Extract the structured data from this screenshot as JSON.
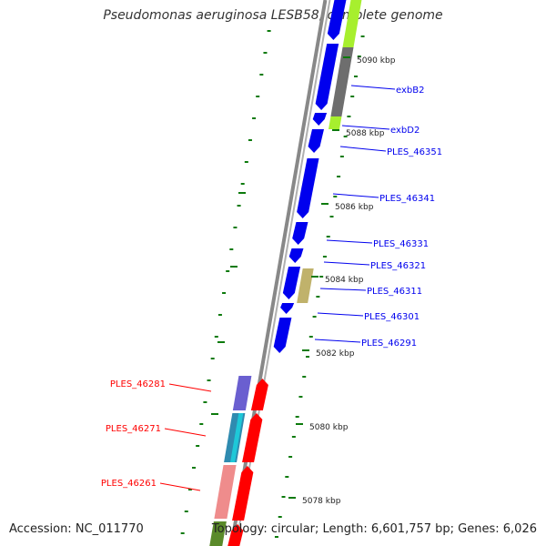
{
  "title": "Pseudomonas aeruginosa LESB58, complete genome",
  "footer": {
    "accession": "Accession: NC_011770",
    "summary": "Topology: circular; Length: 6,601,757 bp; Genes: 6,026"
  },
  "colors": {
    "plus_strand": "#0000ee",
    "minus_strand": "#ff0000",
    "tick": "#0c7a0c",
    "backbone": "#888888"
  },
  "scale_labels": [
    "5090 kbp",
    "5088 kbp",
    "5086 kbp",
    "5084 kbp",
    "5082 kbp",
    "5080 kbp",
    "5078 kbp"
  ],
  "gene_labels_right": [
    "exbB2",
    "exbD2",
    "PLES_46351",
    "PLES_46341",
    "PLES_46331",
    "PLES_46321",
    "PLES_46311",
    "PLES_46301",
    "PLES_46291"
  ],
  "gene_labels_left": [
    "PLES_46281",
    "PLES_46271",
    "PLES_46261"
  ]
}
